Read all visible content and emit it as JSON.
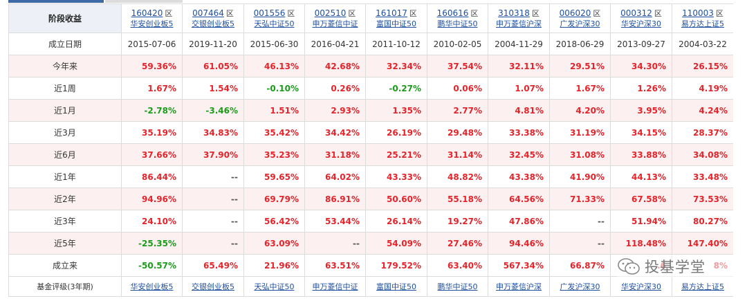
{
  "table": {
    "corner_label": "阶段收益",
    "qu_label": "区",
    "funds": [
      {
        "code": "160420",
        "name": "华安创业板5"
      },
      {
        "code": "007464",
        "name": "交银创业板5"
      },
      {
        "code": "001556",
        "name": "天弘中证50"
      },
      {
        "code": "002510",
        "name": "申万菱信中证"
      },
      {
        "code": "161017",
        "name": "富国中证50"
      },
      {
        "code": "160616",
        "name": "鹏华中证50"
      },
      {
        "code": "310318",
        "name": "申万菱信沪深"
      },
      {
        "code": "006020",
        "name": "广发沪深30"
      },
      {
        "code": "000312",
        "name": "华安沪深30"
      },
      {
        "code": "110003",
        "name": "易方达上证5"
      }
    ],
    "rows": [
      {
        "label": "成立日期",
        "kind": "date",
        "values": [
          "2015-07-06",
          "2019-11-20",
          "2015-06-30",
          "2016-04-21",
          "2011-10-12",
          "2010-02-05",
          "2004-11-29",
          "2018-06-29",
          "2013-09-27",
          "2004-03-22"
        ]
      },
      {
        "label": "今年来",
        "values": [
          "59.36%",
          "61.05%",
          "46.13%",
          "42.68%",
          "32.34%",
          "37.54%",
          "32.11%",
          "29.51%",
          "34.30%",
          "26.15%"
        ]
      },
      {
        "label": "近1周",
        "values": [
          "1.67%",
          "1.54%",
          "-0.10%",
          "0.26%",
          "-0.27%",
          "0.06%",
          "1.07%",
          "1.67%",
          "1.26%",
          "4.19%"
        ]
      },
      {
        "label": "近1月",
        "values": [
          "-2.78%",
          "-3.46%",
          "1.51%",
          "2.93%",
          "1.35%",
          "2.77%",
          "4.81%",
          "4.20%",
          "3.95%",
          "4.24%"
        ]
      },
      {
        "label": "近3月",
        "values": [
          "35.19%",
          "34.83%",
          "35.42%",
          "34.42%",
          "26.19%",
          "29.48%",
          "33.38%",
          "31.19%",
          "34.15%",
          "28.37%"
        ]
      },
      {
        "label": "近6月",
        "values": [
          "37.66%",
          "37.90%",
          "35.23%",
          "31.18%",
          "25.21%",
          "31.14%",
          "32.45%",
          "31.08%",
          "33.88%",
          "34.08%"
        ]
      },
      {
        "label": "近1年",
        "values": [
          "86.44%",
          "--",
          "59.65%",
          "64.02%",
          "43.33%",
          "48.82%",
          "43.38%",
          "41.90%",
          "44.13%",
          "33.48%"
        ]
      },
      {
        "label": "近2年",
        "values": [
          "94.96%",
          "--",
          "69.79%",
          "86.91%",
          "50.60%",
          "55.18%",
          "64.56%",
          "71.33%",
          "67.58%",
          "73.53%"
        ]
      },
      {
        "label": "近3年",
        "values": [
          "24.10%",
          "--",
          "56.42%",
          "53.44%",
          "26.14%",
          "19.27%",
          "47.86%",
          "--",
          "51.94%",
          "80.27%"
        ]
      },
      {
        "label": "近5年",
        "values": [
          "-25.35%",
          "--",
          "63.09%",
          "--",
          "54.09%",
          "27.46%",
          "94.46%",
          "--",
          "118.48%",
          "147.40%"
        ]
      },
      {
        "label": "成立来",
        "values": [
          "-50.57%",
          "65.49%",
          "21.96%",
          "63.51%",
          "179.52%",
          "63.40%",
          "567.34%",
          "66.87%",
          ".6",
          "8%"
        ]
      }
    ],
    "rating_label": "基金评级(3年期)"
  },
  "watermark": {
    "text": "投基学堂",
    "icon": "wechat-icon"
  },
  "colors": {
    "positive": "#e3242b",
    "negative": "#1a9c1a",
    "link": "#1f4fa0",
    "header_bg": "#edf1f7",
    "odd_row_bg": "#fdf0f0"
  }
}
